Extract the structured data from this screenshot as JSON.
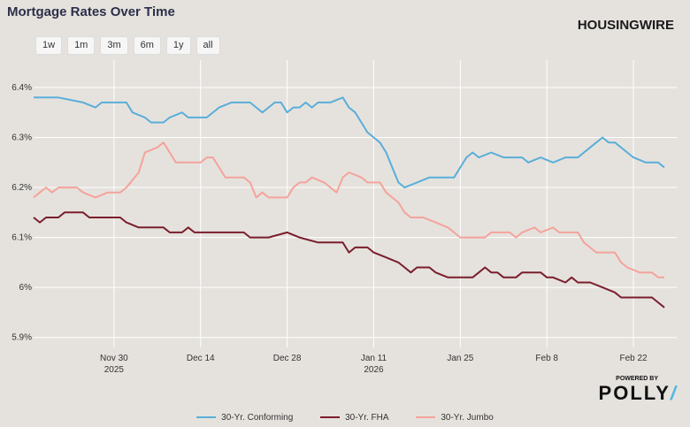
{
  "header": {
    "title": "Mortgage Rates Over Time",
    "brand": "HOUSINGWIRE"
  },
  "range_buttons": [
    "1w",
    "1m",
    "3m",
    "6m",
    "1y",
    "all"
  ],
  "powered_by": {
    "label": "POWERED BY",
    "name": "POLLY",
    "slash": "/"
  },
  "colors": {
    "conforming": "#5aaed9",
    "fha": "#7a1e2c",
    "jumbo": "#f4a39b",
    "grid": "#ffffff"
  },
  "chart_data": {
    "type": "line",
    "title": "Mortgage Rates Over Time",
    "ylim": [
      5.88,
      6.43
    ],
    "xlim": [
      0,
      104
    ],
    "grid": true,
    "legend": "bottom-center",
    "y_ticks": [
      {
        "value": 6.4,
        "label": "6.4%"
      },
      {
        "value": 6.3,
        "label": "6.3%"
      },
      {
        "value": 6.2,
        "label": "6.2%"
      },
      {
        "value": 6.1,
        "label": "6.1%"
      },
      {
        "value": 6.0,
        "label": "6%"
      },
      {
        "value": 5.9,
        "label": "5.9%"
      }
    ],
    "x_ticks": [
      {
        "value": 13,
        "label": "Nov 30",
        "sub": "2025"
      },
      {
        "value": 27,
        "label": "Dec 14",
        "sub": ""
      },
      {
        "value": 41,
        "label": "Dec 28",
        "sub": ""
      },
      {
        "value": 55,
        "label": "Jan 11",
        "sub": "2026"
      },
      {
        "value": 69,
        "label": "Jan 25",
        "sub": ""
      },
      {
        "value": 83,
        "label": "Feb 8",
        "sub": ""
      },
      {
        "value": 97,
        "label": "Feb 22",
        "sub": ""
      }
    ],
    "series": [
      {
        "name": "30-Yr. Conforming",
        "key": "conforming",
        "points": [
          [
            0,
            6.38
          ],
          [
            4,
            6.38
          ],
          [
            8,
            6.37
          ],
          [
            10,
            6.36
          ],
          [
            11,
            6.37
          ],
          [
            15,
            6.37
          ],
          [
            16,
            6.35
          ],
          [
            18,
            6.34
          ],
          [
            19,
            6.33
          ],
          [
            21,
            6.33
          ],
          [
            22,
            6.34
          ],
          [
            24,
            6.35
          ],
          [
            25,
            6.34
          ],
          [
            28,
            6.34
          ],
          [
            30,
            6.36
          ],
          [
            32,
            6.37
          ],
          [
            35,
            6.37
          ],
          [
            36,
            6.36
          ],
          [
            37,
            6.35
          ],
          [
            38,
            6.36
          ],
          [
            39,
            6.37
          ],
          [
            40,
            6.37
          ],
          [
            41,
            6.35
          ],
          [
            42,
            6.36
          ],
          [
            43,
            6.36
          ],
          [
            44,
            6.37
          ],
          [
            45,
            6.36
          ],
          [
            46,
            6.37
          ],
          [
            48,
            6.37
          ],
          [
            50,
            6.38
          ],
          [
            51,
            6.36
          ],
          [
            52,
            6.35
          ],
          [
            53,
            6.33
          ],
          [
            54,
            6.31
          ],
          [
            56,
            6.29
          ],
          [
            57,
            6.27
          ],
          [
            58,
            6.24
          ],
          [
            59,
            6.21
          ],
          [
            60,
            6.2
          ],
          [
            62,
            6.21
          ],
          [
            64,
            6.22
          ],
          [
            68,
            6.22
          ],
          [
            69,
            6.24
          ],
          [
            70,
            6.26
          ],
          [
            71,
            6.27
          ],
          [
            72,
            6.26
          ],
          [
            74,
            6.27
          ],
          [
            76,
            6.26
          ],
          [
            79,
            6.26
          ],
          [
            80,
            6.25
          ],
          [
            82,
            6.26
          ],
          [
            84,
            6.25
          ],
          [
            86,
            6.26
          ],
          [
            88,
            6.26
          ],
          [
            90,
            6.28
          ],
          [
            92,
            6.3
          ],
          [
            93,
            6.29
          ],
          [
            94,
            6.29
          ],
          [
            96,
            6.27
          ],
          [
            97,
            6.26
          ],
          [
            99,
            6.25
          ],
          [
            101,
            6.25
          ],
          [
            102,
            6.24
          ]
        ]
      },
      {
        "name": "30-Yr. FHA",
        "key": "fha",
        "points": [
          [
            0,
            6.14
          ],
          [
            1,
            6.13
          ],
          [
            2,
            6.14
          ],
          [
            4,
            6.14
          ],
          [
            5,
            6.15
          ],
          [
            8,
            6.15
          ],
          [
            9,
            6.14
          ],
          [
            14,
            6.14
          ],
          [
            15,
            6.13
          ],
          [
            17,
            6.12
          ],
          [
            21,
            6.12
          ],
          [
            22,
            6.11
          ],
          [
            24,
            6.11
          ],
          [
            25,
            6.12
          ],
          [
            26,
            6.11
          ],
          [
            34,
            6.11
          ],
          [
            35,
            6.1
          ],
          [
            38,
            6.1
          ],
          [
            41,
            6.11
          ],
          [
            43,
            6.1
          ],
          [
            46,
            6.09
          ],
          [
            50,
            6.09
          ],
          [
            51,
            6.07
          ],
          [
            52,
            6.08
          ],
          [
            54,
            6.08
          ],
          [
            55,
            6.07
          ],
          [
            57,
            6.06
          ],
          [
            59,
            6.05
          ],
          [
            60,
            6.04
          ],
          [
            61,
            6.03
          ],
          [
            62,
            6.04
          ],
          [
            64,
            6.04
          ],
          [
            65,
            6.03
          ],
          [
            67,
            6.02
          ],
          [
            71,
            6.02
          ],
          [
            72,
            6.03
          ],
          [
            73,
            6.04
          ],
          [
            74,
            6.03
          ],
          [
            75,
            6.03
          ],
          [
            76,
            6.02
          ],
          [
            78,
            6.02
          ],
          [
            79,
            6.03
          ],
          [
            82,
            6.03
          ],
          [
            83,
            6.02
          ],
          [
            84,
            6.02
          ],
          [
            86,
            6.01
          ],
          [
            87,
            6.02
          ],
          [
            88,
            6.01
          ],
          [
            90,
            6.01
          ],
          [
            92,
            6.0
          ],
          [
            94,
            5.99
          ],
          [
            95,
            5.98
          ],
          [
            100,
            5.98
          ],
          [
            101,
            5.97
          ],
          [
            102,
            5.96
          ]
        ]
      },
      {
        "name": "30-Yr. Jumbo",
        "key": "jumbo",
        "points": [
          [
            0,
            6.18
          ],
          [
            1,
            6.19
          ],
          [
            2,
            6.2
          ],
          [
            3,
            6.19
          ],
          [
            4,
            6.2
          ],
          [
            7,
            6.2
          ],
          [
            8,
            6.19
          ],
          [
            10,
            6.18
          ],
          [
            12,
            6.19
          ],
          [
            14,
            6.19
          ],
          [
            15,
            6.2
          ],
          [
            17,
            6.23
          ],
          [
            18,
            6.27
          ],
          [
            20,
            6.28
          ],
          [
            21,
            6.29
          ],
          [
            22,
            6.27
          ],
          [
            23,
            6.25
          ],
          [
            24,
            6.25
          ],
          [
            27,
            6.25
          ],
          [
            28,
            6.26
          ],
          [
            29,
            6.26
          ],
          [
            30,
            6.24
          ],
          [
            31,
            6.22
          ],
          [
            34,
            6.22
          ],
          [
            35,
            6.21
          ],
          [
            36,
            6.18
          ],
          [
            37,
            6.19
          ],
          [
            38,
            6.18
          ],
          [
            41,
            6.18
          ],
          [
            42,
            6.2
          ],
          [
            43,
            6.21
          ],
          [
            44,
            6.21
          ],
          [
            45,
            6.22
          ],
          [
            47,
            6.21
          ],
          [
            48,
            6.2
          ],
          [
            49,
            6.19
          ],
          [
            50,
            6.22
          ],
          [
            51,
            6.23
          ],
          [
            53,
            6.22
          ],
          [
            54,
            6.21
          ],
          [
            56,
            6.21
          ],
          [
            57,
            6.19
          ],
          [
            58,
            6.18
          ],
          [
            59,
            6.17
          ],
          [
            60,
            6.15
          ],
          [
            61,
            6.14
          ],
          [
            63,
            6.14
          ],
          [
            65,
            6.13
          ],
          [
            67,
            6.12
          ],
          [
            68,
            6.11
          ],
          [
            69,
            6.1
          ],
          [
            73,
            6.1
          ],
          [
            74,
            6.11
          ],
          [
            77,
            6.11
          ],
          [
            78,
            6.1
          ],
          [
            79,
            6.11
          ],
          [
            81,
            6.12
          ],
          [
            82,
            6.11
          ],
          [
            84,
            6.12
          ],
          [
            85,
            6.11
          ],
          [
            88,
            6.11
          ],
          [
            89,
            6.09
          ],
          [
            90,
            6.08
          ],
          [
            91,
            6.07
          ],
          [
            94,
            6.07
          ],
          [
            95,
            6.05
          ],
          [
            96,
            6.04
          ],
          [
            98,
            6.03
          ],
          [
            100,
            6.03
          ],
          [
            101,
            6.02
          ],
          [
            102,
            6.02
          ]
        ]
      }
    ]
  }
}
